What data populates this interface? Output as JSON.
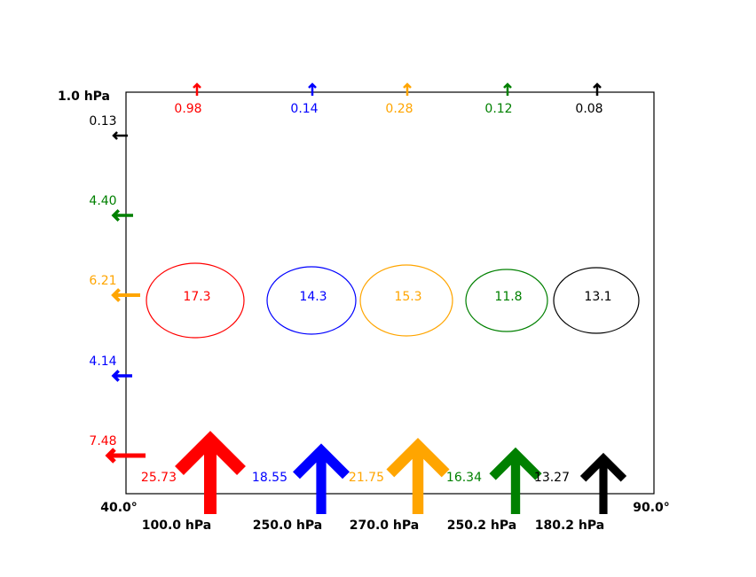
{
  "chart_data": {
    "type": "other",
    "description_free": true,
    "corner_labels": {
      "top_left": "1.0 hPa",
      "bottom_left": "40.0°",
      "bottom_right": "90.0°"
    },
    "columns": [
      {
        "color": "#ff0000",
        "top_value": 0.98,
        "top_label": "0.98",
        "circle_value": 17.3,
        "circle_label": "17.3",
        "bottom_value": 25.73,
        "bottom_label": "25.73",
        "pressure_label": "100.0 hPa"
      },
      {
        "color": "#0000ff",
        "top_value": 0.14,
        "top_label": "0.14",
        "circle_value": 14.3,
        "circle_label": "14.3",
        "bottom_value": 18.55,
        "bottom_label": "18.55",
        "pressure_label": "250.0 hPa"
      },
      {
        "color": "#ffa500",
        "top_value": 0.28,
        "top_label": "0.28",
        "circle_value": 15.3,
        "circle_label": "15.3",
        "bottom_value": 21.75,
        "bottom_label": "21.75",
        "pressure_label": "270.0 hPa"
      },
      {
        "color": "#008000",
        "top_value": 0.12,
        "top_label": "0.12",
        "circle_value": 11.8,
        "circle_label": "11.8",
        "bottom_value": 16.34,
        "bottom_label": "16.34",
        "pressure_label": "250.2 hPa"
      },
      {
        "color": "#000000",
        "top_value": 0.08,
        "top_label": "0.08",
        "circle_value": 13.1,
        "circle_label": "13.1",
        "bottom_value": 13.27,
        "bottom_label": "13.27",
        "pressure_label": "180.2 hPa"
      }
    ],
    "left_arrows": [
      {
        "color": "#000000",
        "value": 0.13,
        "label": "0.13"
      },
      {
        "color": "#008000",
        "value": 4.4,
        "label": "4.40"
      },
      {
        "color": "#ffa500",
        "value": 6.21,
        "label": "6.21"
      },
      {
        "color": "#0000ff",
        "value": 4.14,
        "label": "4.14"
      },
      {
        "color": "#ff0000",
        "value": 7.48,
        "label": "7.48"
      }
    ]
  }
}
